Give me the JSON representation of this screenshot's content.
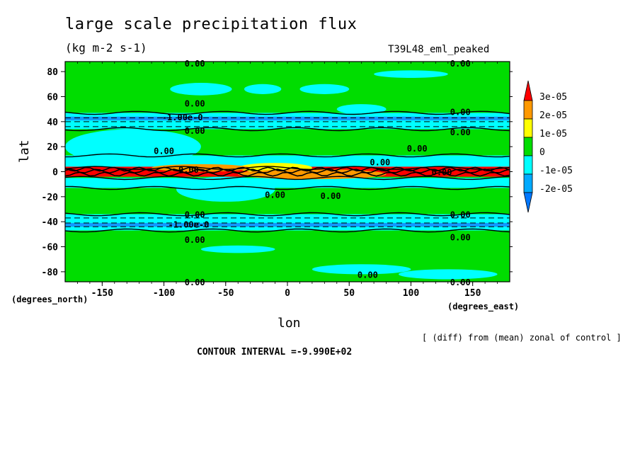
{
  "title": "large scale precipitation flux",
  "units": "(kg m-2 s-1)",
  "run_label": "T39L48_eml_peaked",
  "x_axis_label": "lon",
  "y_axis_label": "lat",
  "x_units_label": "(degrees_east)",
  "y_units_label": "(degrees_north)",
  "note": "[ (diff) from (mean) zonal of control ]",
  "contour_interval": "CONTOUR INTERVAL =-9.990E+02",
  "chart_data": {
    "type": "heatmap",
    "xlabel": "lon",
    "ylabel": "lat",
    "xlim": [
      -180,
      180
    ],
    "ylim": [
      -88,
      88
    ],
    "x_ticks": [
      -150,
      -100,
      -50,
      0,
      50,
      100,
      150
    ],
    "y_ticks": [
      80,
      60,
      40,
      20,
      0,
      -20,
      -40,
      -60,
      -80
    ],
    "colorbar": {
      "labels": [
        "3e-05",
        "2e-05",
        "1e-05",
        "0",
        "-1e-05",
        "-2e-05"
      ],
      "bins": [
        {
          "range": "> 3e-05",
          "color": "#ff0000"
        },
        {
          "range": "2e-05 to 3e-05",
          "color": "#ff9900"
        },
        {
          "range": "1e-05 to 2e-05",
          "color": "#ffff00"
        },
        {
          "range": "0 to 1e-05",
          "color": "#00dd00"
        },
        {
          "range": "-1e-05 to 0",
          "color": "#00ffff"
        },
        {
          "range": "-2e-05 to -1e-05",
          "color": "#00aaff"
        },
        {
          "range": "< -2e-05",
          "color": "#0077ff"
        }
      ]
    },
    "bands": [
      {
        "lat_range": [
          -88,
          88
        ],
        "value": "0 to 1e-05",
        "color": "#00dd00"
      },
      {
        "lat_range": [
          34,
          47
        ],
        "value": "-1e-05 to 0",
        "color": "#00ffff"
      },
      {
        "lat_range": [
          41,
          44
        ],
        "value": "-2e-05 to -1e-05",
        "color": "#1199ff"
      },
      {
        "lat_range": [
          -47,
          -34
        ],
        "value": "-1e-05 to 0",
        "color": "#00ffff"
      },
      {
        "lat_range": [
          -44,
          -41
        ],
        "value": "-2e-05 to -1e-05",
        "color": "#1199ff"
      },
      {
        "lat_range": [
          3,
          13
        ],
        "value": "-1e-05 to 0",
        "color": "#00ffff"
      },
      {
        "lat_range": [
          -13,
          -5
        ],
        "value": "-1e-05 to 0",
        "color": "#00ffff"
      },
      {
        "lat_range": [
          -4,
          4
        ],
        "value": "> 3e-05",
        "color": "#ff0000"
      }
    ],
    "contour_labels": [
      "0.00",
      "0.00",
      "0.00",
      "0.00",
      "0.00",
      "0.00",
      "0.00",
      "0.00",
      "0.00",
      "0.00",
      "0.00",
      "0.00",
      "0.00",
      "0.00",
      "0.00",
      "0.00",
      "0.00",
      "-1.00e-0",
      "-1.00e-0",
      "0.00",
      "0.00",
      "0.00"
    ]
  }
}
